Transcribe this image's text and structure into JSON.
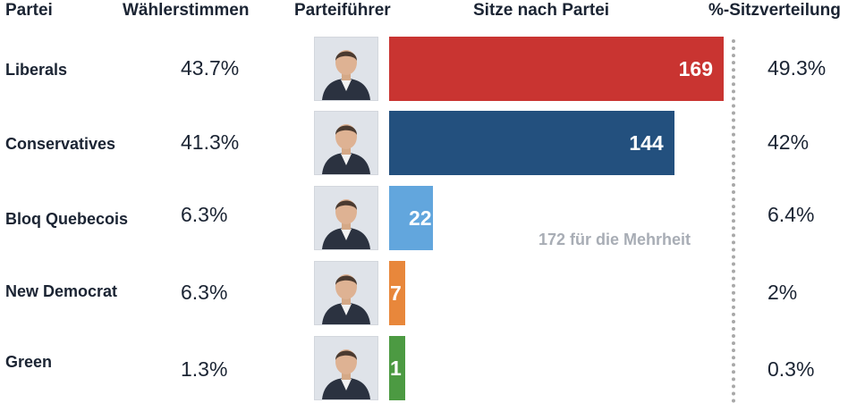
{
  "headers": {
    "party": "Partei",
    "votes": "Wählerstimmen",
    "leader": "Parteiführer",
    "seats": "Sitze nach Partei",
    "seat_share": "%-Sitzverteilung"
  },
  "majority_label": "172 für die Mehrheit",
  "chart_data": {
    "type": "bar",
    "orientation": "horizontal",
    "title": "",
    "categories": [
      "Liberals",
      "Conservatives",
      "Bloq Quebecois",
      "New Democrat",
      "Green"
    ],
    "series": [
      {
        "values": [
          169,
          144,
          22,
          7,
          1
        ]
      }
    ],
    "vote_share": [
      "43.7%",
      "41.3%",
      "6.3%",
      "6.3%",
      "1.3%"
    ],
    "seat_share": [
      "49.3%",
      "42%",
      "6.4%",
      "2%",
      "0.3%"
    ],
    "colors": [
      "#c93431",
      "#23507e",
      "#62a6dd",
      "#e8873b",
      "#4c9a42"
    ],
    "majority_threshold": 172,
    "xlim": [
      0,
      172
    ],
    "grid": false,
    "legend": "none"
  }
}
